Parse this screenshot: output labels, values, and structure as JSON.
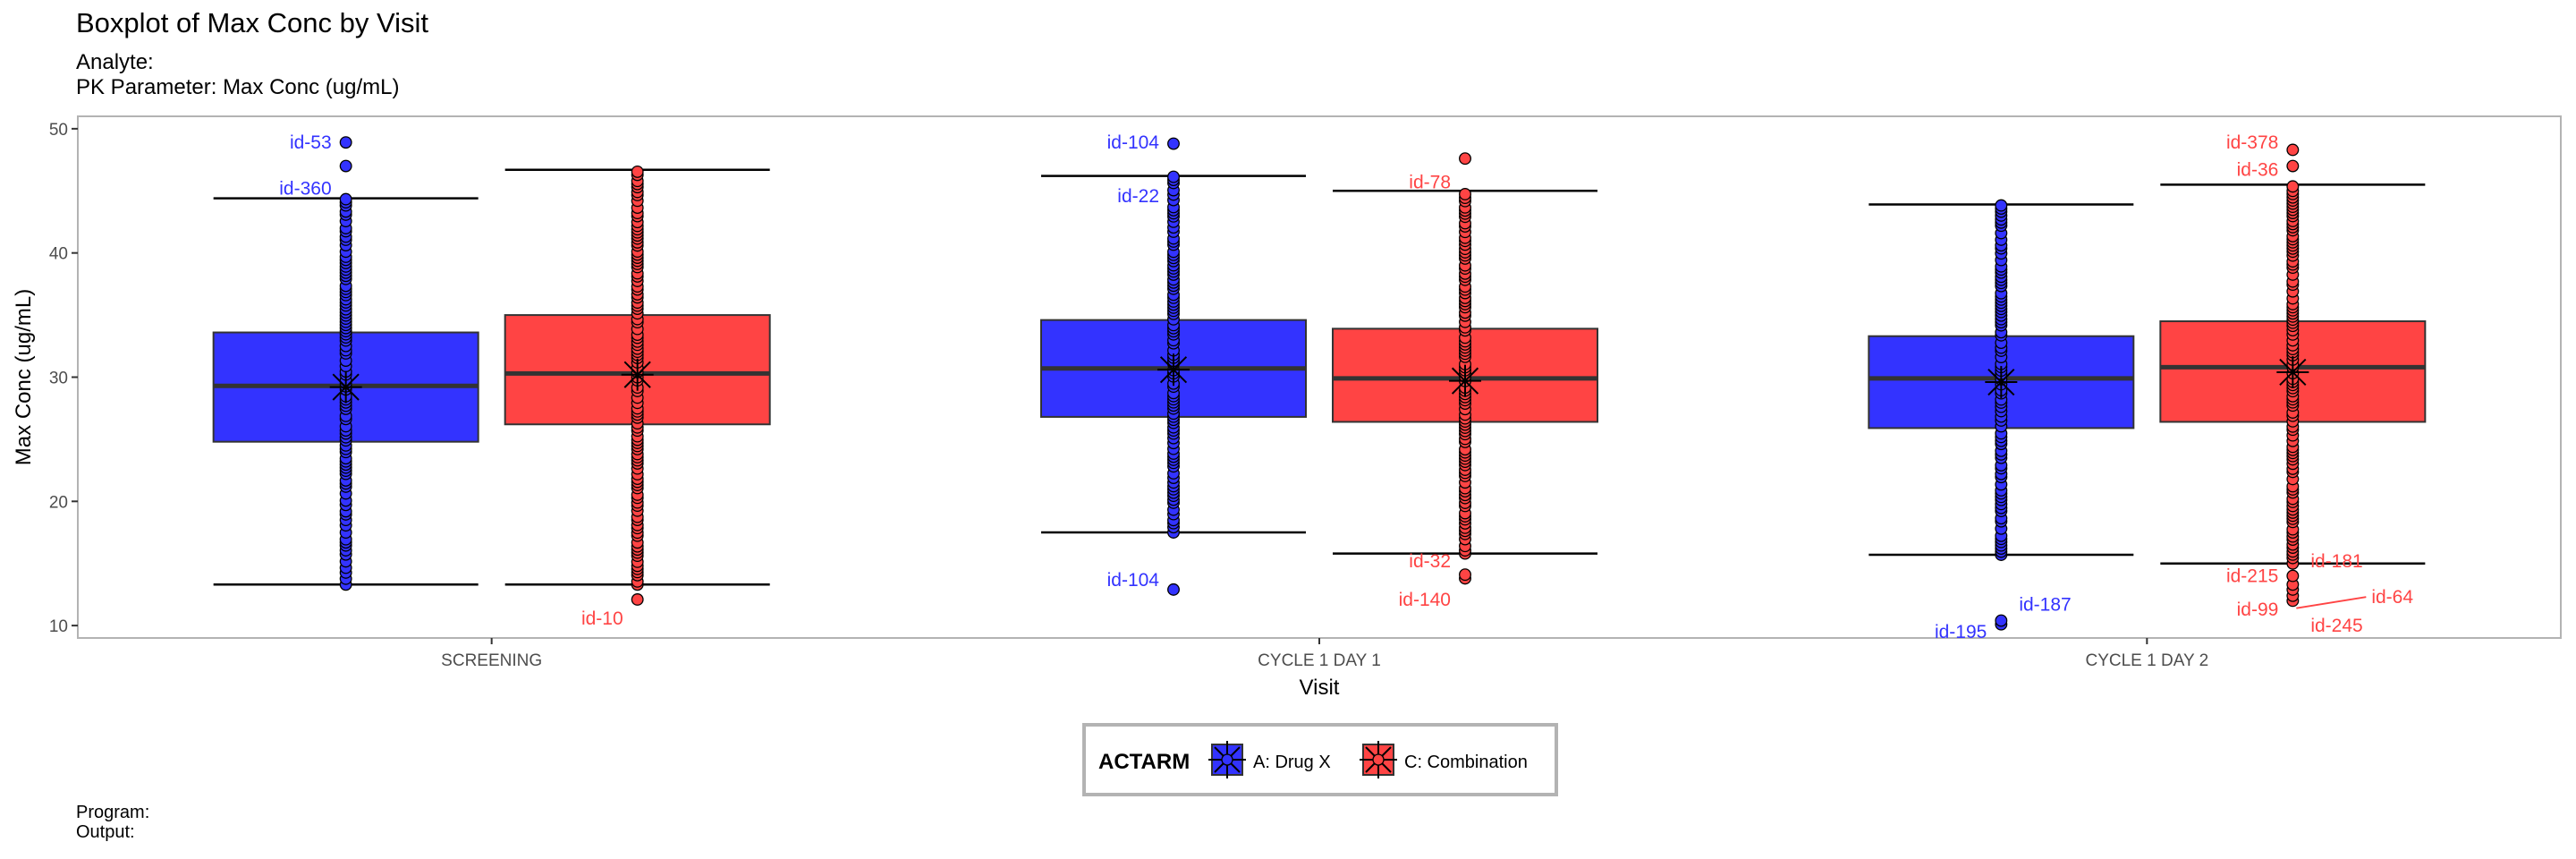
{
  "header": {
    "title": "Boxplot of Max Conc by Visit",
    "subtitle_analyte": "Analyte:",
    "subtitle_param": "PK Parameter: Max Conc (ug/mL)"
  },
  "footer": {
    "program": "Program:",
    "output": "Output:"
  },
  "colors": {
    "drug_x": "#3333FF",
    "combination": "#FF4444"
  },
  "chart_data": {
    "type": "boxplot",
    "title": "Boxplot of Max Conc by Visit",
    "xlabel": "Visit",
    "ylabel": "Max Conc (ug/mL)",
    "ylim": [
      9,
      51
    ],
    "yticks": [
      10,
      20,
      30,
      40,
      50
    ],
    "categories": [
      "SCREENING",
      "CYCLE 1 DAY 1",
      "CYCLE 1 DAY 2"
    ],
    "legend": {
      "title": "ACTARM",
      "position": "bottom",
      "entries": [
        "A: Drug X",
        "C: Combination"
      ]
    },
    "series": [
      {
        "name": "A: Drug X",
        "color": "#3333FF",
        "boxes": [
          {
            "whisker_low": 13.3,
            "q1": 24.8,
            "median": 29.3,
            "q3": 33.6,
            "whisker_high": 44.4,
            "mean": 29.2
          },
          {
            "whisker_low": 17.5,
            "q1": 26.8,
            "median": 30.7,
            "q3": 34.6,
            "whisker_high": 46.2,
            "mean": 30.6
          },
          {
            "whisker_low": 15.7,
            "q1": 25.9,
            "median": 29.9,
            "q3": 33.3,
            "whisker_high": 43.9,
            "mean": 29.6
          }
        ],
        "outliers": [
          {
            "visit": 0,
            "values": [
              47.0,
              48.9
            ]
          },
          {
            "visit": 1,
            "values": [
              12.9,
              48.8
            ]
          },
          {
            "visit": 2,
            "values": [
              10.1,
              10.4
            ]
          }
        ]
      },
      {
        "name": "C: Combination",
        "color": "#FF4444",
        "boxes": [
          {
            "whisker_low": 13.3,
            "q1": 26.2,
            "median": 30.3,
            "q3": 35.0,
            "whisker_high": 46.7,
            "mean": 30.2
          },
          {
            "whisker_low": 15.8,
            "q1": 26.4,
            "median": 29.9,
            "q3": 33.9,
            "whisker_high": 45.0,
            "mean": 29.7
          },
          {
            "whisker_low": 15.0,
            "q1": 26.4,
            "median": 30.8,
            "q3": 34.5,
            "whisker_high": 45.5,
            "mean": 30.4
          }
        ],
        "outliers": [
          {
            "visit": 0,
            "values": [
              12.1
            ]
          },
          {
            "visit": 1,
            "values": [
              13.8,
              14.1,
              47.6
            ]
          },
          {
            "visit": 2,
            "values": [
              12.0,
              12.4,
              12.9,
              13.3,
              14.0,
              47.0,
              48.3
            ]
          }
        ]
      }
    ],
    "annotations": [
      {
        "text": "id-53",
        "visit": 0,
        "series": 0,
        "y": 48.9,
        "anchor": "end",
        "side": "top-left"
      },
      {
        "text": "id-360",
        "visit": 0,
        "series": 0,
        "y": 45.2,
        "anchor": "end",
        "side": "top-left"
      },
      {
        "text": "id-10",
        "visit": 0,
        "series": 1,
        "y": 10.6,
        "anchor": "end",
        "side": "left"
      },
      {
        "text": "id-104",
        "visit": 1,
        "series": 0,
        "y": 48.9,
        "anchor": "end",
        "side": "top-left"
      },
      {
        "text": "id-22",
        "visit": 1,
        "series": 0,
        "y": 44.6,
        "anchor": "end",
        "side": "left"
      },
      {
        "text": "id-104",
        "visit": 1,
        "series": 0,
        "y": 13.7,
        "anchor": "end",
        "side": "left"
      },
      {
        "text": "id-78",
        "visit": 1,
        "series": 1,
        "y": 45.7,
        "anchor": "end",
        "side": "left"
      },
      {
        "text": "id-32",
        "visit": 1,
        "series": 1,
        "y": 15.2,
        "anchor": "end",
        "side": "left"
      },
      {
        "text": "id-140",
        "visit": 1,
        "series": 1,
        "y": 12.1,
        "anchor": "end",
        "side": "left"
      },
      {
        "text": "id-187",
        "visit": 2,
        "series": 0,
        "y": 11.7,
        "anchor": "start",
        "side": "right"
      },
      {
        "text": "id-195",
        "visit": 2,
        "series": 0,
        "y": 9.5,
        "anchor": "end",
        "side": "left"
      },
      {
        "text": "id-378",
        "visit": 2,
        "series": 1,
        "y": 48.9,
        "anchor": "end",
        "side": "left"
      },
      {
        "text": "id-36",
        "visit": 2,
        "series": 1,
        "y": 46.7,
        "anchor": "end",
        "side": "left"
      },
      {
        "text": "id-181",
        "visit": 2,
        "series": 1,
        "y": 15.2,
        "anchor": "start",
        "side": "right"
      },
      {
        "text": "id-215",
        "visit": 2,
        "series": 1,
        "y": 14.0,
        "anchor": "end",
        "side": "left"
      },
      {
        "text": "id-64",
        "visit": 2,
        "series": 1,
        "y": 12.3,
        "anchor": "start",
        "side": "far-right"
      },
      {
        "text": "id-99",
        "visit": 2,
        "series": 1,
        "y": 11.3,
        "anchor": "end",
        "side": "left"
      },
      {
        "text": "id-245",
        "visit": 2,
        "series": 1,
        "y": 10.0,
        "anchor": "start",
        "side": "right"
      }
    ]
  }
}
